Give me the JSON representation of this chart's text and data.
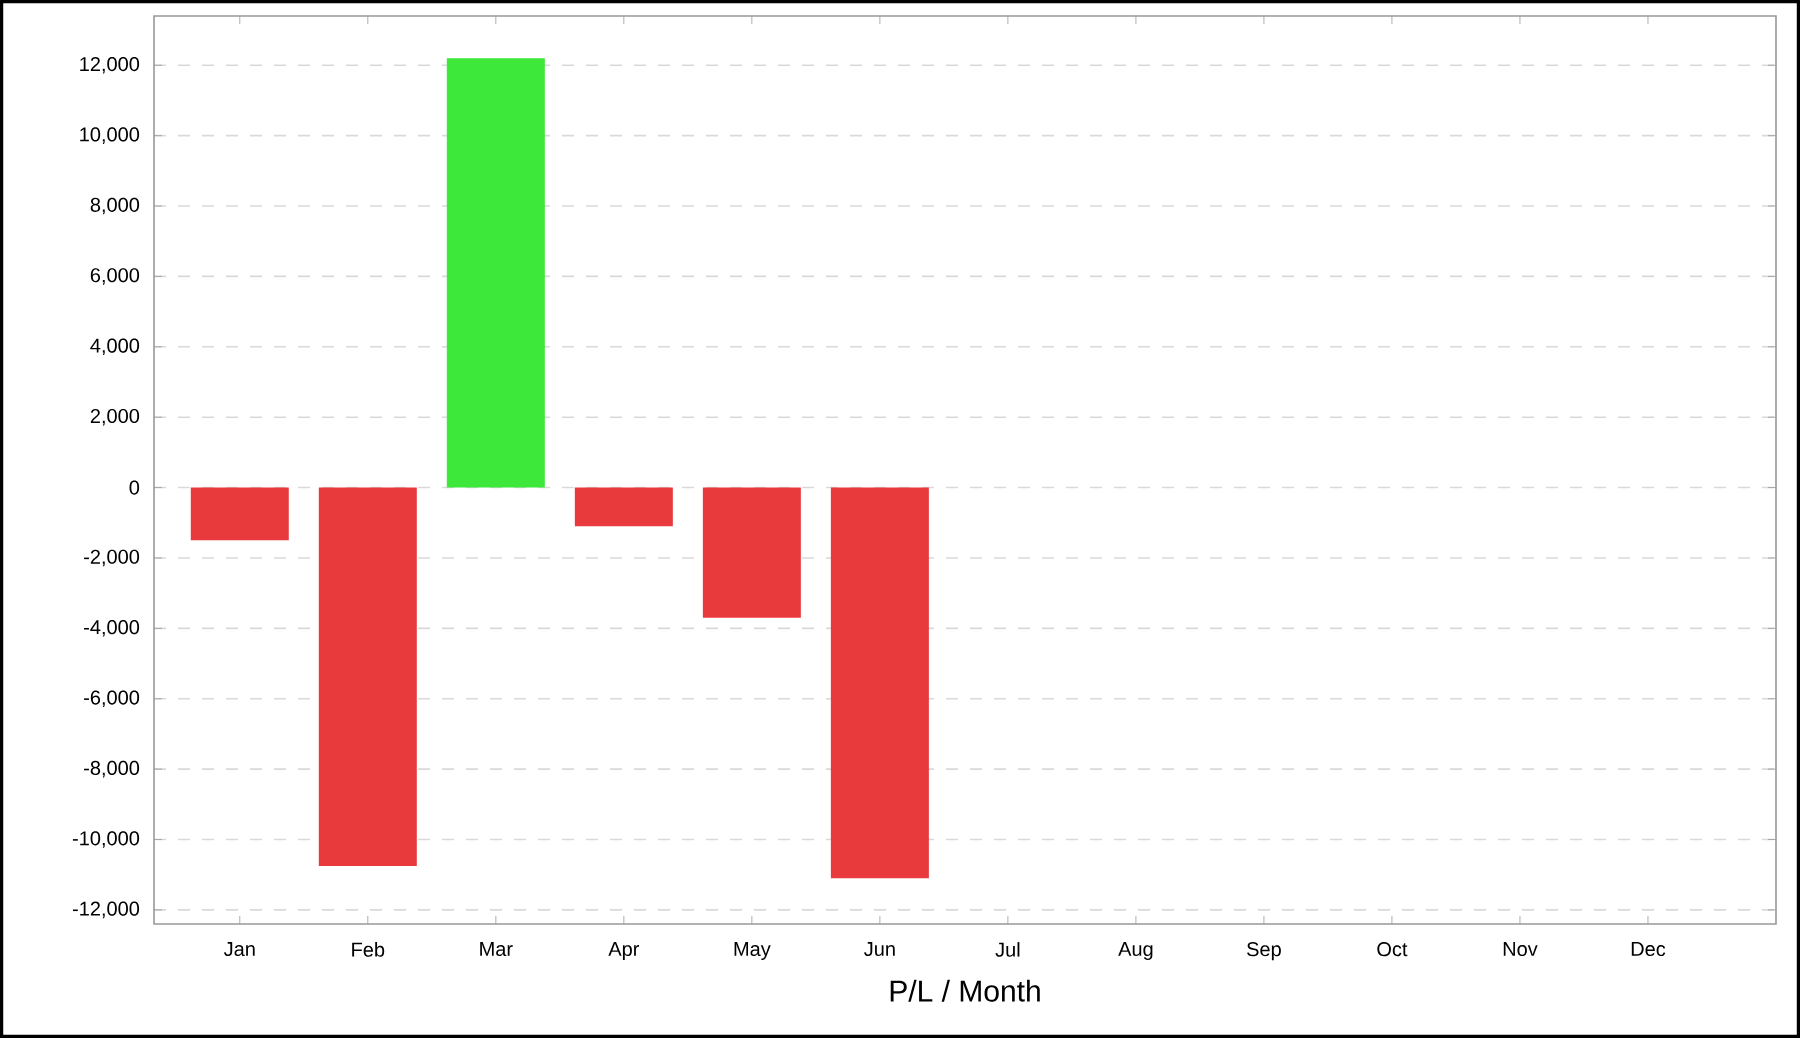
{
  "chart_data": {
    "type": "bar",
    "xlabel": "P/L / Month",
    "categories": [
      "Jan",
      "Feb",
      "Mar",
      "Apr",
      "May",
      "Jun",
      "Jul",
      "Aug",
      "Sep",
      "Oct",
      "Nov",
      "Dec"
    ],
    "values": [
      -1500,
      -10750,
      12200,
      -1100,
      -3700,
      -11100,
      null,
      null,
      null,
      null,
      null,
      null
    ],
    "colors": [
      "#e8393c",
      "#e8393c",
      "#3de83a",
      "#e8393c",
      "#e8393c",
      "#e8393c",
      null,
      null,
      null,
      null,
      null,
      null
    ],
    "ylim": [
      -12400,
      13400
    ],
    "yticks": [
      {
        "value": -12000,
        "label": "-12,000"
      },
      {
        "value": -10000,
        "label": "-10,000"
      },
      {
        "value": -8000,
        "label": "-8,000"
      },
      {
        "value": -6000,
        "label": "-6,000"
      },
      {
        "value": -4000,
        "label": "-4,000"
      },
      {
        "value": -2000,
        "label": "-2,000"
      },
      {
        "value": 0,
        "label": "0"
      },
      {
        "value": 2000,
        "label": "2,000"
      },
      {
        "value": 4000,
        "label": "4,000"
      },
      {
        "value": 6000,
        "label": "6,000"
      },
      {
        "value": 8000,
        "label": "8,000"
      },
      {
        "value": 10000,
        "label": "10,000"
      },
      {
        "value": 12000,
        "label": "12,000"
      }
    ],
    "grid": "y"
  }
}
